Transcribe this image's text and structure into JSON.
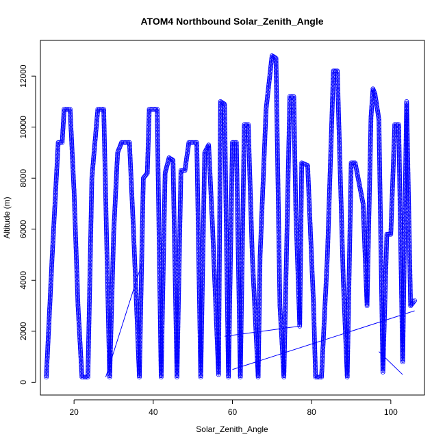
{
  "chart_data": {
    "type": "scatter",
    "title": "ATOM4 Northbound Solar_Zenith_Angle",
    "xlabel": "Solar_Zenith_Angle",
    "ylabel": "Altitude (m)",
    "xlim": [
      11.5,
      108.5
    ],
    "ylim": [
      -500,
      13400
    ],
    "x_ticks": [
      20,
      40,
      60,
      80,
      100
    ],
    "y_ticks": [
      0,
      2000,
      4000,
      6000,
      8000,
      10000,
      12000
    ],
    "grid": false,
    "marker": "open-circle",
    "color": "#0000ff",
    "series": [
      {
        "points": [
          [
            13,
            200
          ],
          [
            14.5,
            5000
          ],
          [
            16,
            9400
          ],
          [
            17,
            9400
          ],
          [
            17.5,
            10700
          ],
          [
            19,
            10700
          ],
          [
            20,
            7500
          ],
          [
            21,
            3000
          ],
          [
            22,
            200
          ],
          [
            23.5,
            200
          ],
          [
            24.5,
            8000
          ],
          [
            26,
            10700
          ],
          [
            27.5,
            10700
          ],
          [
            29,
            200
          ],
          [
            30,
            5800
          ],
          [
            31,
            9000
          ],
          [
            32,
            9400
          ],
          [
            34,
            9400
          ],
          [
            35,
            6000
          ],
          [
            36.5,
            200
          ],
          [
            37.5,
            8000
          ],
          [
            38.5,
            8200
          ],
          [
            39,
            10700
          ],
          [
            41,
            10700
          ],
          [
            42,
            200
          ],
          [
            43,
            8200
          ],
          [
            44,
            8800
          ],
          [
            45,
            8700
          ],
          [
            46,
            200
          ],
          [
            47,
            8300
          ],
          [
            48,
            8300
          ],
          [
            49,
            9400
          ],
          [
            51,
            9400
          ],
          [
            52,
            200
          ],
          [
            53,
            9000
          ],
          [
            54,
            9300
          ],
          [
            55,
            6000
          ],
          [
            56.5,
            300
          ],
          [
            57,
            11000
          ],
          [
            58,
            10900
          ],
          [
            59,
            200
          ],
          [
            60,
            9400
          ],
          [
            61,
            9400
          ],
          [
            62,
            200
          ],
          [
            63,
            10100
          ],
          [
            64,
            10100
          ],
          [
            65,
            5000
          ],
          [
            66.5,
            200
          ],
          [
            67,
            5000
          ],
          [
            68.5,
            10700
          ],
          [
            70,
            12800
          ],
          [
            71,
            12700
          ],
          [
            72,
            3000
          ],
          [
            73,
            200
          ],
          [
            74.5,
            11200
          ],
          [
            75.5,
            11200
          ],
          [
            76,
            6800
          ],
          [
            77,
            2200
          ],
          [
            77.5,
            8600
          ],
          [
            79,
            8500
          ],
          [
            80.5,
            3000
          ],
          [
            81,
            200
          ],
          [
            82.5,
            200
          ],
          [
            84,
            5000
          ],
          [
            85.5,
            12200
          ],
          [
            86.5,
            12200
          ],
          [
            88,
            4000
          ],
          [
            89,
            200
          ],
          [
            90,
            8600
          ],
          [
            91,
            8600
          ],
          [
            93,
            7000
          ],
          [
            94,
            3000
          ],
          [
            95,
            10400
          ],
          [
            95.5,
            11500
          ],
          [
            96,
            11300
          ],
          [
            97,
            10300
          ],
          [
            98,
            400
          ],
          [
            99,
            5800
          ],
          [
            100,
            5800
          ],
          [
            101,
            10100
          ],
          [
            102,
            10100
          ],
          [
            103,
            800
          ],
          [
            104,
            11000
          ],
          [
            105,
            3000
          ],
          [
            106,
            3200
          ]
        ]
      }
    ],
    "connector_lines": [
      [
        [
          28,
          200
        ],
        [
          37,
          4600
        ]
      ],
      [
        [
          58,
          1800
        ],
        [
          77,
          2200
        ]
      ],
      [
        [
          60,
          500
        ],
        [
          106,
          2800
        ]
      ],
      [
        [
          97,
          1200
        ],
        [
          103,
          300
        ]
      ]
    ]
  }
}
